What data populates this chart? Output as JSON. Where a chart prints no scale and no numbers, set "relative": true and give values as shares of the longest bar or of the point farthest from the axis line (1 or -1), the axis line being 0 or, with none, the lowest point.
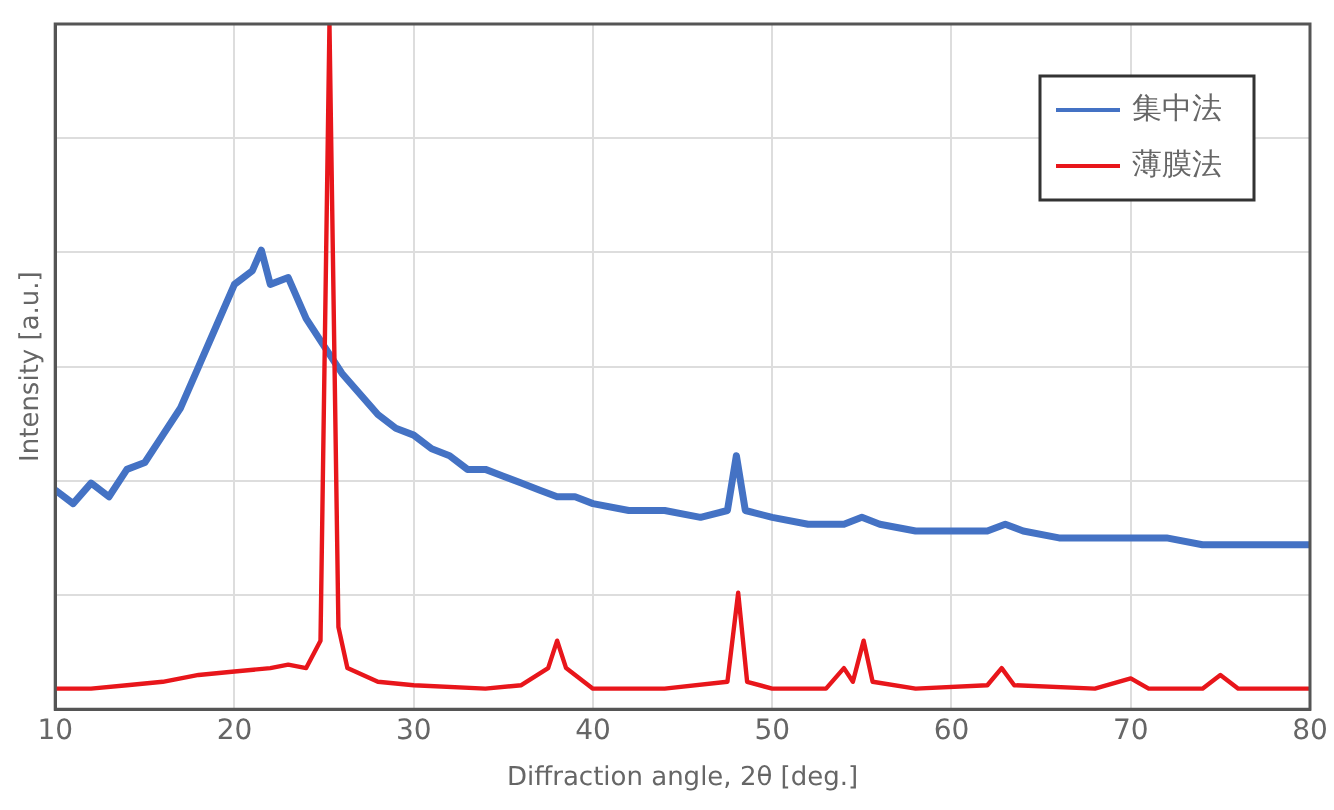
{
  "chart_data": {
    "type": "line",
    "relative": true,
    "xlabel": "Diffraction angle, 2θ [deg.]",
    "ylabel": "Intensity [a.u.]",
    "xlim": [
      10,
      80
    ],
    "xticks": [
      10,
      20,
      30,
      40,
      50,
      60,
      70,
      80
    ],
    "grid": true,
    "legend": "top right",
    "marker": "none",
    "line_style": "solid",
    "series": [
      {
        "name": "集中法",
        "color": "#4472c4",
        "x": [
          10,
          11,
          12,
          13,
          14,
          15,
          16,
          17,
          18,
          19,
          20,
          21,
          21.5,
          22,
          23,
          24,
          25,
          26,
          27,
          28,
          29,
          30,
          31,
          32,
          33,
          34,
          35,
          36,
          37,
          38,
          39,
          40,
          42,
          44,
          46,
          47.5,
          48,
          48.5,
          50,
          52,
          54,
          55,
          56,
          58,
          60,
          62,
          63,
          64,
          66,
          68,
          70,
          72,
          74,
          76,
          78,
          80
        ],
        "values": [
          0.32,
          0.3,
          0.33,
          0.31,
          0.35,
          0.36,
          0.4,
          0.44,
          0.5,
          0.56,
          0.62,
          0.64,
          0.67,
          0.62,
          0.63,
          0.57,
          0.53,
          0.49,
          0.46,
          0.43,
          0.41,
          0.4,
          0.38,
          0.37,
          0.35,
          0.35,
          0.34,
          0.33,
          0.32,
          0.31,
          0.31,
          0.3,
          0.29,
          0.29,
          0.28,
          0.29,
          0.37,
          0.29,
          0.28,
          0.27,
          0.27,
          0.28,
          0.27,
          0.26,
          0.26,
          0.26,
          0.27,
          0.26,
          0.25,
          0.25,
          0.25,
          0.25,
          0.24,
          0.24,
          0.24,
          0.24
        ]
      },
      {
        "name": "薄膜法",
        "color": "#e8161b",
        "x": [
          10,
          12,
          14,
          16,
          18,
          20,
          22,
          23,
          24,
          24.8,
          25.3,
          25.8,
          26.3,
          28,
          30,
          34,
          36,
          37.5,
          38,
          38.5,
          40,
          44,
          47.5,
          48.1,
          48.6,
          50,
          53,
          54,
          54.5,
          55.1,
          55.6,
          58,
          62,
          62.8,
          63.5,
          68,
          70,
          71,
          74,
          75,
          76,
          80
        ],
        "values": [
          0.03,
          0.03,
          0.035,
          0.04,
          0.05,
          0.055,
          0.06,
          0.065,
          0.06,
          0.1,
          1,
          0.12,
          0.06,
          0.04,
          0.035,
          0.03,
          0.035,
          0.06,
          0.1,
          0.06,
          0.03,
          0.03,
          0.04,
          0.17,
          0.04,
          0.03,
          0.03,
          0.06,
          0.04,
          0.1,
          0.04,
          0.03,
          0.035,
          0.06,
          0.035,
          0.03,
          0.045,
          0.03,
          0.03,
          0.05,
          0.03,
          0.03
        ]
      }
    ]
  }
}
